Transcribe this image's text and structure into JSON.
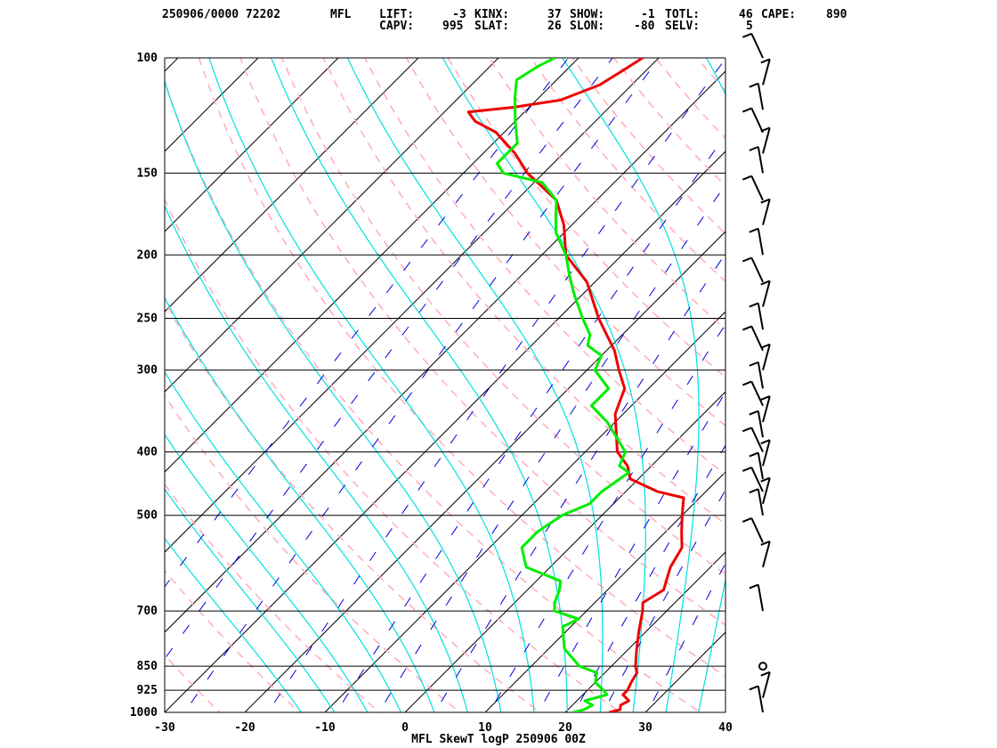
{
  "header": {
    "line1": [
      {
        "key": "id",
        "text": "250906/0000 72202"
      },
      {
        "key": "station",
        "text": "MFL"
      },
      {
        "key": "lift_label",
        "text": "LIFT:"
      },
      {
        "key": "lift_value",
        "text": "-3"
      },
      {
        "key": "kinx_label",
        "text": "KINX:"
      },
      {
        "key": "kinx_value",
        "text": "37"
      },
      {
        "key": "show_label",
        "text": "SHOW:"
      },
      {
        "key": "show_value",
        "text": "-1"
      },
      {
        "key": "totl_label",
        "text": "TOTL:"
      },
      {
        "key": "totl_value",
        "text": "46"
      },
      {
        "key": "cape_label",
        "text": "CAPE:"
      },
      {
        "key": "cape_value",
        "text": "890"
      }
    ],
    "line2": [
      {
        "key": "capv_label",
        "text": "CAPV:"
      },
      {
        "key": "capv_value",
        "text": "995"
      },
      {
        "key": "slat_label",
        "text": "SLAT:"
      },
      {
        "key": "slat_value",
        "text": "26"
      },
      {
        "key": "slon_label",
        "text": "SLON:"
      },
      {
        "key": "slon_value",
        "text": "-80"
      },
      {
        "key": "selv_label",
        "text": "SELV:"
      },
      {
        "key": "selv_value",
        "text": "5"
      }
    ]
  },
  "caption": "MFL SkewT logP 250906 00Z",
  "colors": {
    "temperature": "#ee0000",
    "dewpoint": "#00ee00",
    "dry_adiabat": "#ffb0c0",
    "moist_adiabat": "#00e0e0",
    "mixing_ratio": "#0000dd",
    "isotherm": "#000000",
    "isobar": "#000000",
    "wind": "#000000"
  },
  "chart_data": {
    "type": "skewt-logp",
    "caption": "MFL SkewT logP 250906 00Z",
    "x_axis": {
      "label": "",
      "range": [
        -30,
        40
      ],
      "ticks": [
        -30,
        -20,
        -10,
        0,
        10,
        20,
        30,
        40
      ],
      "unit": "°C"
    },
    "y_axis": {
      "label": "",
      "scale": "log",
      "range": [
        1000,
        100
      ],
      "ticks": [
        100,
        150,
        200,
        250,
        300,
        400,
        500,
        700,
        850,
        925,
        1000
      ],
      "unit": "hPa"
    },
    "temperature": [
      [
        1000,
        25.5
      ],
      [
        990,
        26.5
      ],
      [
        975,
        26
      ],
      [
        960,
        26.5
      ],
      [
        940,
        25
      ],
      [
        925,
        25
      ],
      [
        900,
        24.5
      ],
      [
        870,
        24
      ],
      [
        850,
        23
      ],
      [
        800,
        21
      ],
      [
        750,
        19
      ],
      [
        700,
        17
      ],
      [
        680,
        16
      ],
      [
        650,
        17
      ],
      [
        600,
        15
      ],
      [
        560,
        14
      ],
      [
        530,
        12
      ],
      [
        500,
        10
      ],
      [
        470,
        8
      ],
      [
        460,
        4
      ],
      [
        440,
        -1
      ],
      [
        420,
        -3
      ],
      [
        400,
        -6
      ],
      [
        350,
        -11
      ],
      [
        320,
        -13
      ],
      [
        300,
        -16
      ],
      [
        280,
        -19
      ],
      [
        250,
        -25
      ],
      [
        220,
        -31
      ],
      [
        200,
        -37
      ],
      [
        180,
        -41
      ],
      [
        165,
        -45
      ],
      [
        150,
        -52
      ],
      [
        140,
        -56
      ],
      [
        130,
        -61
      ],
      [
        125,
        -65
      ],
      [
        121,
        -67
      ],
      [
        119,
        -62
      ],
      [
        116,
        -57
      ],
      [
        110,
        -54
      ],
      [
        105,
        -53
      ],
      [
        100,
        -52
      ]
    ],
    "dewpoint": [
      [
        1000,
        21
      ],
      [
        990,
        22
      ],
      [
        975,
        22.5
      ],
      [
        960,
        21
      ],
      [
        940,
        23
      ],
      [
        925,
        22
      ],
      [
        900,
        20
      ],
      [
        870,
        19
      ],
      [
        850,
        16
      ],
      [
        800,
        12
      ],
      [
        760,
        10
      ],
      [
        740,
        9
      ],
      [
        720,
        10
      ],
      [
        700,
        6
      ],
      [
        680,
        5
      ],
      [
        650,
        4
      ],
      [
        630,
        3
      ],
      [
        600,
        -3
      ],
      [
        560,
        -6
      ],
      [
        530,
        -6
      ],
      [
        500,
        -5
      ],
      [
        480,
        -3
      ],
      [
        460,
        -3
      ],
      [
        430,
        -2
      ],
      [
        420,
        -4
      ],
      [
        400,
        -5
      ],
      [
        360,
        -11
      ],
      [
        340,
        -15
      ],
      [
        320,
        -15
      ],
      [
        300,
        -19
      ],
      [
        285,
        -20
      ],
      [
        275,
        -23
      ],
      [
        265,
        -24
      ],
      [
        250,
        -27
      ],
      [
        230,
        -31
      ],
      [
        215,
        -34
      ],
      [
        200,
        -37
      ],
      [
        185,
        -41
      ],
      [
        175,
        -43
      ],
      [
        165,
        -45
      ],
      [
        155,
        -49
      ],
      [
        150,
        -55
      ],
      [
        145,
        -57
      ],
      [
        135,
        -57
      ],
      [
        125,
        -60
      ],
      [
        115,
        -63
      ],
      [
        108,
        -65
      ],
      [
        103,
        -64
      ],
      [
        100,
        -63
      ]
    ],
    "winds": [
      {
        "p": 1000,
        "dir": "light"
      },
      {
        "p": 950,
        "dir": "light"
      },
      {
        "p": 850,
        "dir": "calm"
      },
      {
        "p": 700,
        "dir": "light"
      },
      {
        "p": 600,
        "dir": "light"
      },
      {
        "p": 550,
        "dir": "light"
      },
      {
        "p": 500,
        "dir": "light"
      },
      {
        "p": 480,
        "dir": "light"
      },
      {
        "p": 460,
        "dir": "light"
      },
      {
        "p": 440,
        "dir": "light"
      },
      {
        "p": 420,
        "dir": "light"
      },
      {
        "p": 400,
        "dir": "light"
      },
      {
        "p": 380,
        "dir": "light"
      },
      {
        "p": 360,
        "dir": "light"
      },
      {
        "p": 340,
        "dir": "light"
      },
      {
        "p": 320,
        "dir": "light"
      },
      {
        "p": 300,
        "dir": "light"
      },
      {
        "p": 280,
        "dir": "light"
      },
      {
        "p": 260,
        "dir": "light"
      },
      {
        "p": 240,
        "dir": "light"
      },
      {
        "p": 220,
        "dir": "light"
      },
      {
        "p": 200,
        "dir": "light"
      },
      {
        "p": 180,
        "dir": "light"
      },
      {
        "p": 165,
        "dir": "light"
      },
      {
        "p": 150,
        "dir": "light"
      },
      {
        "p": 140,
        "dir": "light"
      },
      {
        "p": 130,
        "dir": "light"
      },
      {
        "p": 120,
        "dir": "light"
      },
      {
        "p": 110,
        "dir": "light"
      },
      {
        "p": 100,
        "dir": "light"
      }
    ],
    "grid": true,
    "legend": "none"
  }
}
